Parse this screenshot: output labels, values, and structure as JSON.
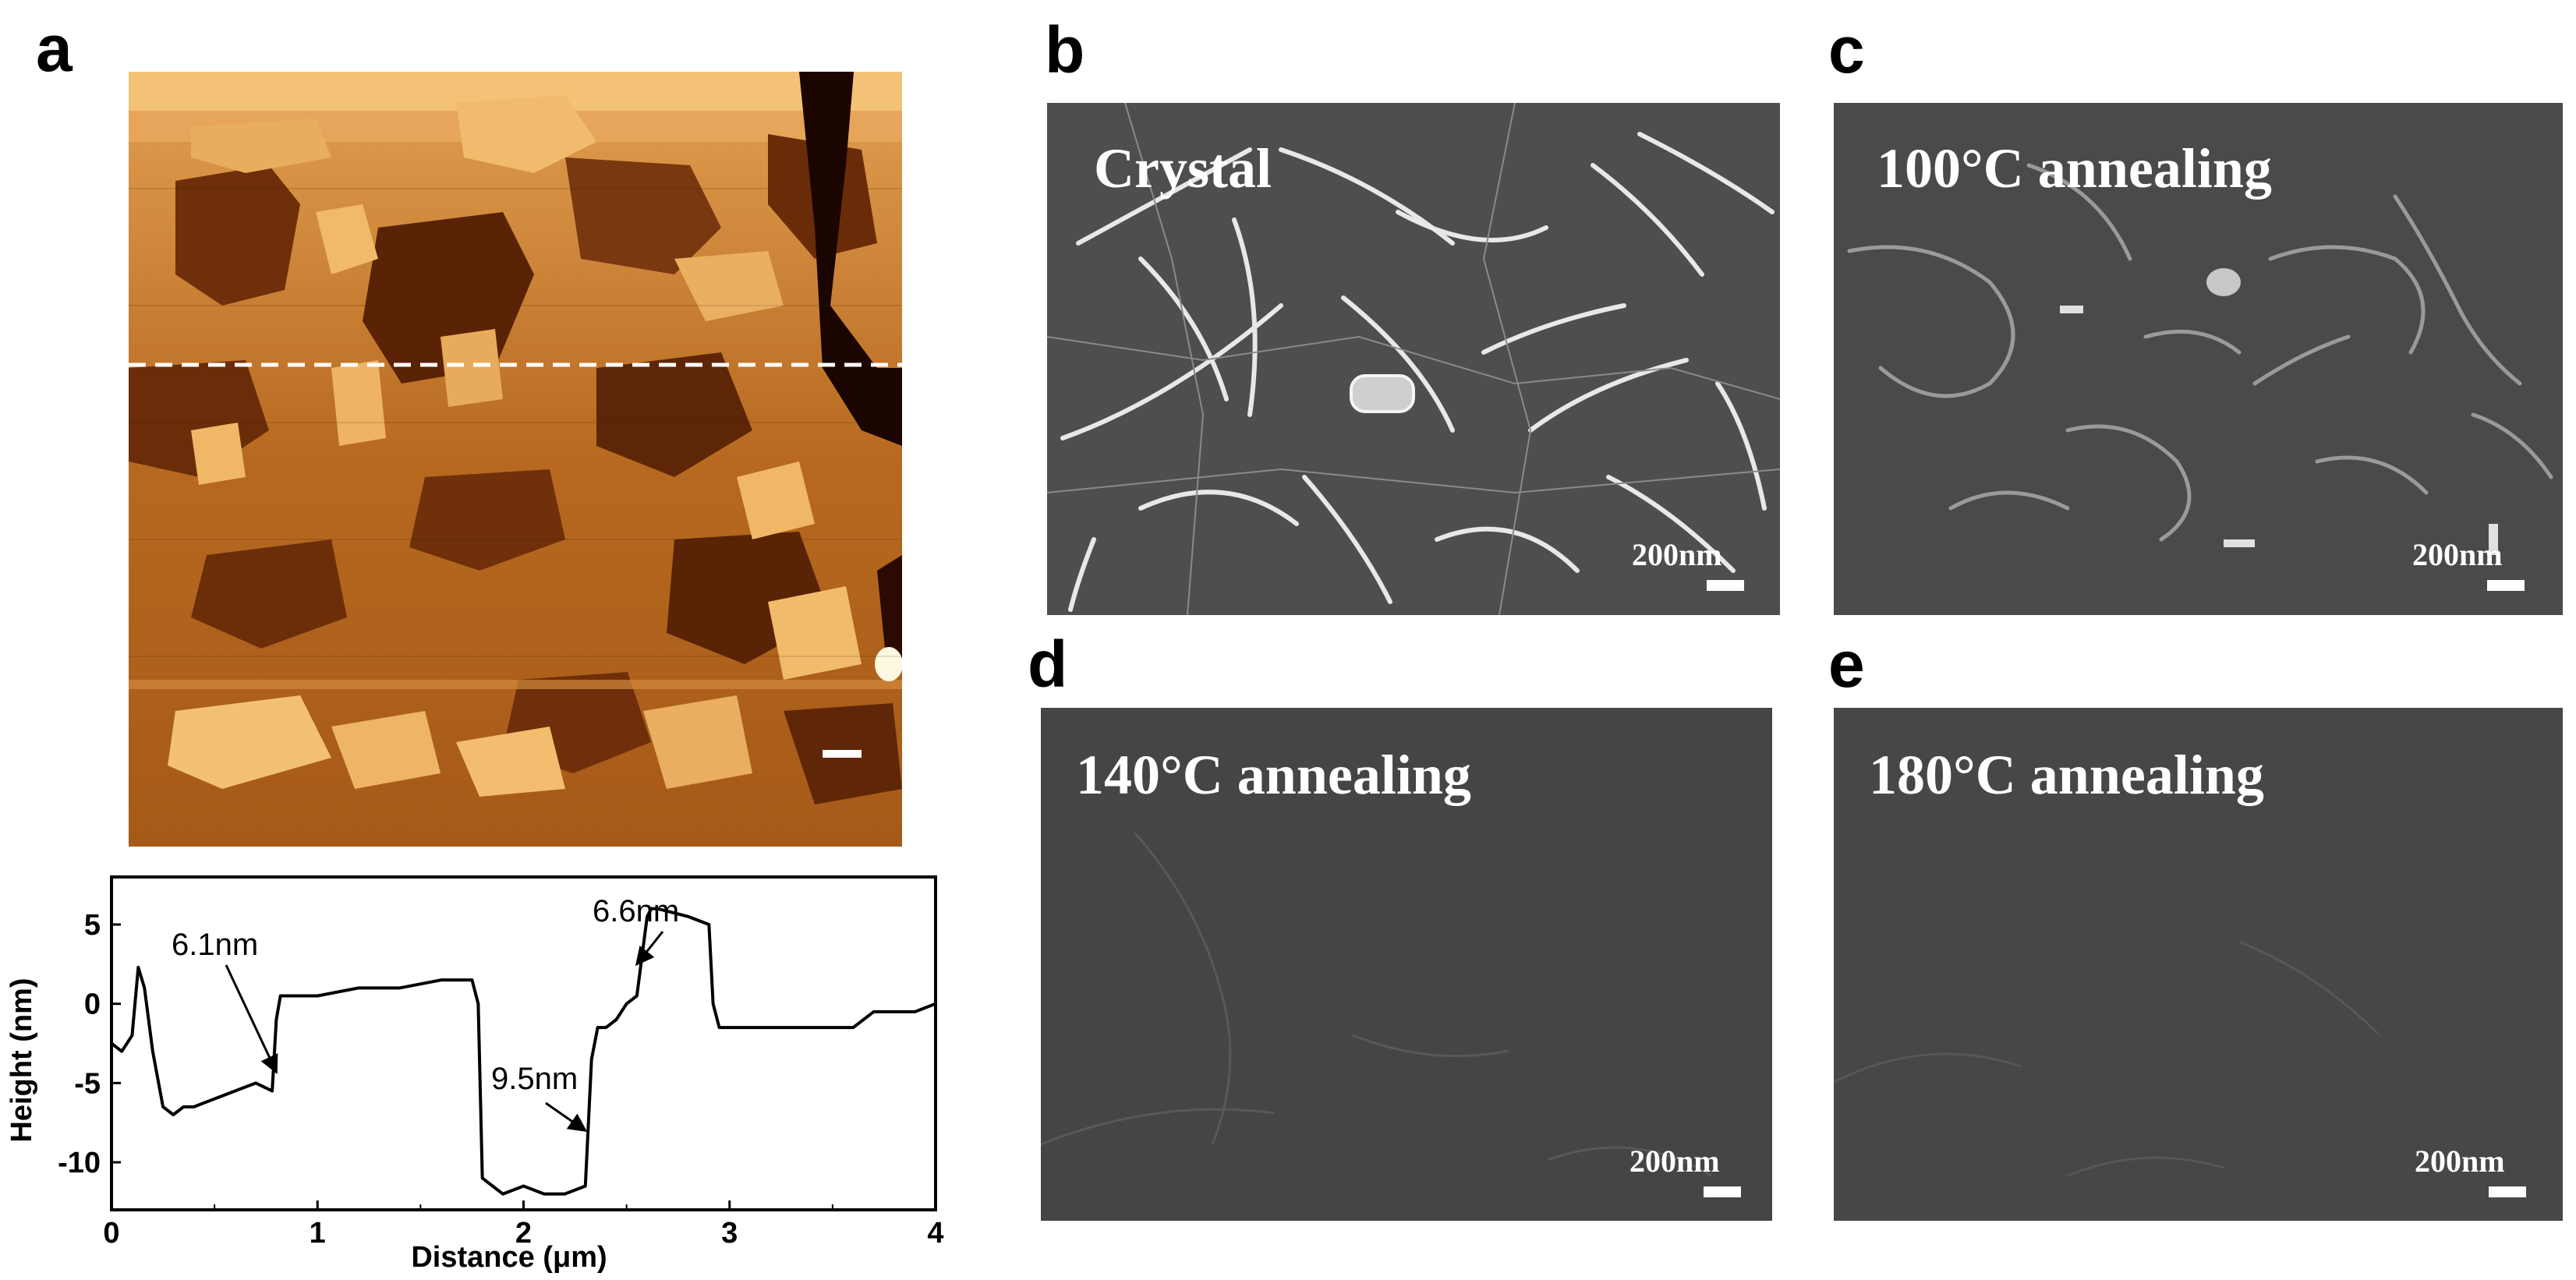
{
  "panels": {
    "a": "a",
    "b": "b",
    "c": "c",
    "d": "d",
    "e": "e"
  },
  "sem_images": {
    "b": {
      "label": "Crystal",
      "scale": "200nm"
    },
    "c": {
      "label": "100°C annealing",
      "scale": "200nm"
    },
    "d": {
      "label": "140°C annealing",
      "scale": "200nm"
    },
    "e": {
      "label": "180°C annealing",
      "scale": "200nm"
    }
  },
  "chart_data": {
    "type": "line",
    "xlabel": "Distance (μm)",
    "ylabel": "Height (nm)",
    "xlim": [
      0,
      4
    ],
    "ylim": [
      -13,
      8
    ],
    "xticks": [
      0,
      1,
      2,
      3,
      4
    ],
    "yticks": [
      5,
      0,
      -5,
      -10
    ],
    "series": [
      {
        "x": [
          0,
          0.05,
          0.1,
          0.13,
          0.16,
          0.2,
          0.25,
          0.3,
          0.35,
          0.4,
          0.5,
          0.6,
          0.7,
          0.78,
          0.8,
          0.82,
          0.9,
          1.0,
          1.2,
          1.4,
          1.6,
          1.75,
          1.78,
          1.8,
          1.85,
          1.9,
          2.0,
          2.1,
          2.2,
          2.3,
          2.33,
          2.36,
          2.4,
          2.45,
          2.5,
          2.55,
          2.6,
          2.62,
          2.65,
          2.8,
          2.9,
          2.92,
          2.95,
          3.0,
          3.1,
          3.2,
          3.4,
          3.6,
          3.7,
          3.8,
          3.9,
          4.0
        ],
        "y": [
          -2.5,
          -3,
          -2,
          2.3,
          1,
          -3,
          -6.5,
          -7,
          -6.5,
          -6.5,
          -6,
          -5.5,
          -5,
          -5.5,
          -1,
          0.5,
          0.5,
          0.5,
          1,
          1,
          1.5,
          1.5,
          0,
          -11,
          -11.5,
          -12,
          -11.5,
          -12,
          -12,
          -11.5,
          -3.5,
          -1.5,
          -1.5,
          -1,
          0,
          0.5,
          5.5,
          6,
          6,
          5.5,
          5,
          0,
          -1.5,
          -1.5,
          -1.5,
          -1.5,
          -1.5,
          -1.5,
          -0.5,
          -0.5,
          -0.5,
          0
        ]
      }
    ],
    "annotations": [
      {
        "text": "6.1nm",
        "x": 0.8,
        "y": -4.3
      },
      {
        "text": "9.5nm",
        "x": 2.3,
        "y": -8
      },
      {
        "text": "6.6nm",
        "x": 2.55,
        "y": 2.5
      }
    ]
  }
}
